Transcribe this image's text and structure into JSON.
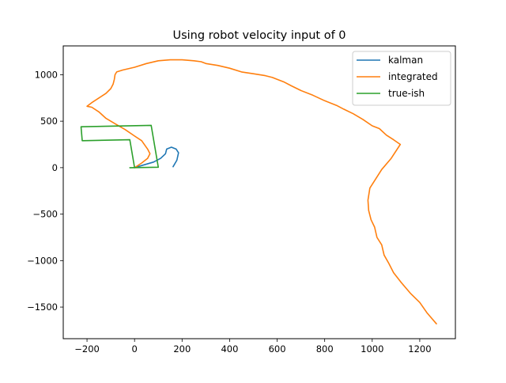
{
  "chart_data": {
    "type": "line",
    "title": "Using robot velocity input of 0",
    "xlabel": "",
    "ylabel": "",
    "xlim": [
      -300,
      1350
    ],
    "ylim": [
      -1840,
      1310
    ],
    "xticks": [
      -200,
      0,
      200,
      400,
      600,
      800,
      1000,
      1200
    ],
    "yticks": [
      -1500,
      -1000,
      -500,
      0,
      500,
      1000
    ],
    "grid": false,
    "legend": "top-right",
    "series": [
      {
        "name": "kalman",
        "color": "#1f77b4",
        "x": [
          0,
          40,
          80,
          110,
          130,
          135,
          155,
          175,
          185,
          178,
          162
        ],
        "y": [
          0,
          30,
          60,
          100,
          150,
          200,
          220,
          200,
          160,
          80,
          10
        ]
      },
      {
        "name": "integrated",
        "color": "#ff7f0e",
        "x": [
          1270,
          1230,
          1200,
          1160,
          1120,
          1090,
          1070,
          1050,
          1040,
          1020,
          1010,
          995,
          985,
          982,
          990,
          1010,
          1040,
          1080,
          1118,
          1090,
          1060,
          1030,
          1000,
          960,
          920,
          880,
          850,
          800,
          750,
          700,
          660,
          630,
          600,
          580,
          550,
          500,
          450,
          400,
          350,
          300,
          280,
          250,
          200,
          150,
          100,
          50,
          0,
          -50,
          -75,
          -82,
          -85,
          -90,
          -100,
          -120,
          -150,
          -180,
          -200,
          -180,
          -150,
          -120,
          -80,
          -40,
          0,
          30,
          55,
          65,
          55,
          30,
          0
        ],
        "y": [
          -1680,
          -1560,
          -1450,
          -1350,
          -1230,
          -1130,
          -1030,
          -940,
          -830,
          -750,
          -640,
          -560,
          -460,
          -350,
          -220,
          -140,
          -20,
          100,
          250,
          300,
          350,
          420,
          450,
          520,
          580,
          630,
          670,
          720,
          780,
          830,
          880,
          920,
          950,
          970,
          990,
          1010,
          1030,
          1070,
          1100,
          1120,
          1140,
          1150,
          1160,
          1160,
          1150,
          1120,
          1080,
          1050,
          1030,
          1000,
          950,
          900,
          850,
          800,
          750,
          700,
          660,
          650,
          600,
          530,
          470,
          410,
          340,
          290,
          200,
          150,
          100,
          50,
          0
        ]
      },
      {
        "name": "true-ish",
        "color": "#2ca02c",
        "x": [
          -20,
          100,
          70,
          -225,
          -220,
          -20,
          0
        ],
        "y": [
          0,
          5,
          455,
          440,
          290,
          300,
          0
        ]
      }
    ]
  }
}
